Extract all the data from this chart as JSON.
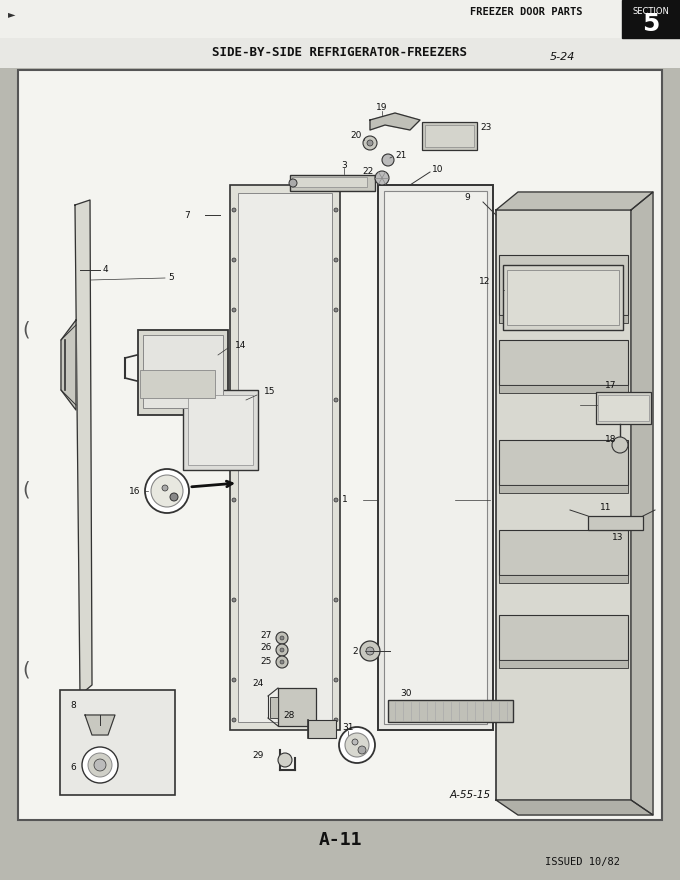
{
  "page_bg": "#b8b8b0",
  "header_bg": "#f5f5f0",
  "diagram_bg": "#f8f8f4",
  "border_color": "#444444",
  "text_color": "#111111",
  "header_left": "FREEZER DOOR PARTS",
  "header_section": "SECTION",
  "header_num": "5",
  "title_main": "SIDE-BY-SIDE REFRIGERATOR-FREEZERS",
  "title_page": "5-24",
  "footer_label": "A-11",
  "footer_issued": "ISSUED 10/82",
  "sub_label": "A-55-15",
  "draw_color": "#333333",
  "light_gray": "#cccccc",
  "mid_gray": "#aaaaaa",
  "dark_gray": "#777777"
}
